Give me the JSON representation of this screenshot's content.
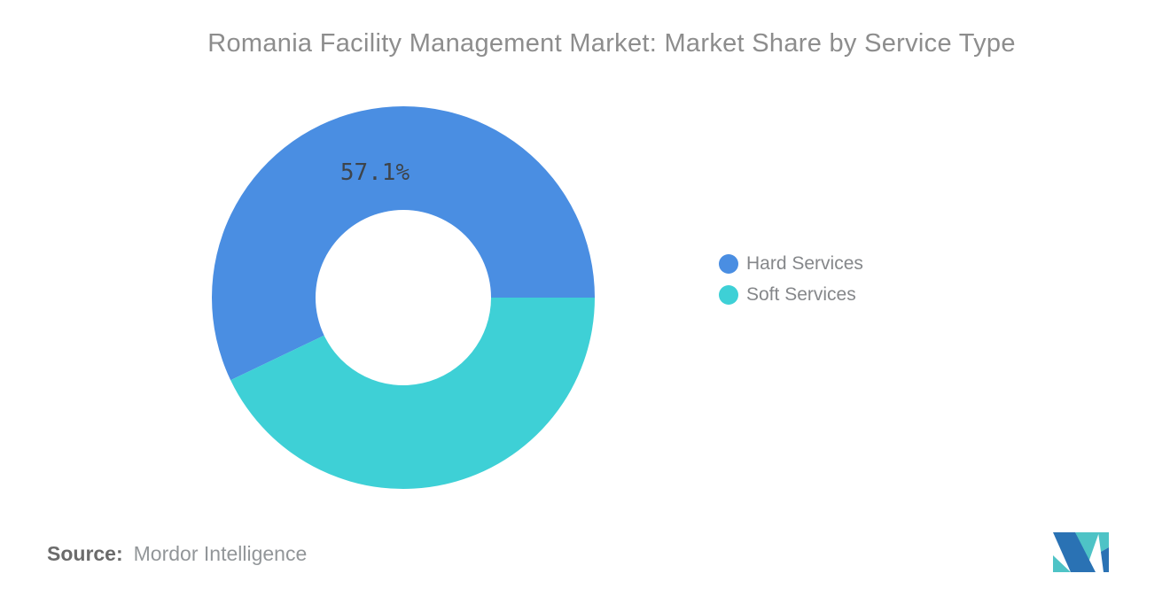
{
  "header": {
    "title": "Romania Facility Management Market: Market Share by Service Type"
  },
  "chart_data": {
    "type": "pie",
    "subtype": "donut",
    "title": "Romania Facility Management Market: Market Share by Service Type",
    "categories": [
      "Hard Services",
      "Soft Services"
    ],
    "values": [
      57.1,
      42.9
    ],
    "unit": "%",
    "slice_labels": [
      "57.1%",
      ""
    ],
    "colors": [
      "#4A8EE2",
      "#3ED0D6"
    ],
    "slice_label_color": "#3E444A",
    "start_angle_deg": 0,
    "direction": "counterclockwise",
    "inner_radius_ratio": 0.46,
    "legend_position": "right",
    "background": "#FFFFFF"
  },
  "legend": {
    "items": [
      {
        "label": "Hard Services",
        "color": "#4A8EE2"
      },
      {
        "label": "Soft Services",
        "color": "#3ED0D6"
      }
    ]
  },
  "footer": {
    "source_label": "Source:",
    "source_value": "Mordor Intelligence"
  },
  "logo": {
    "name": "mordor-intelligence-logo",
    "teal": "#4EC3C6",
    "blue": "#2A72B4"
  }
}
